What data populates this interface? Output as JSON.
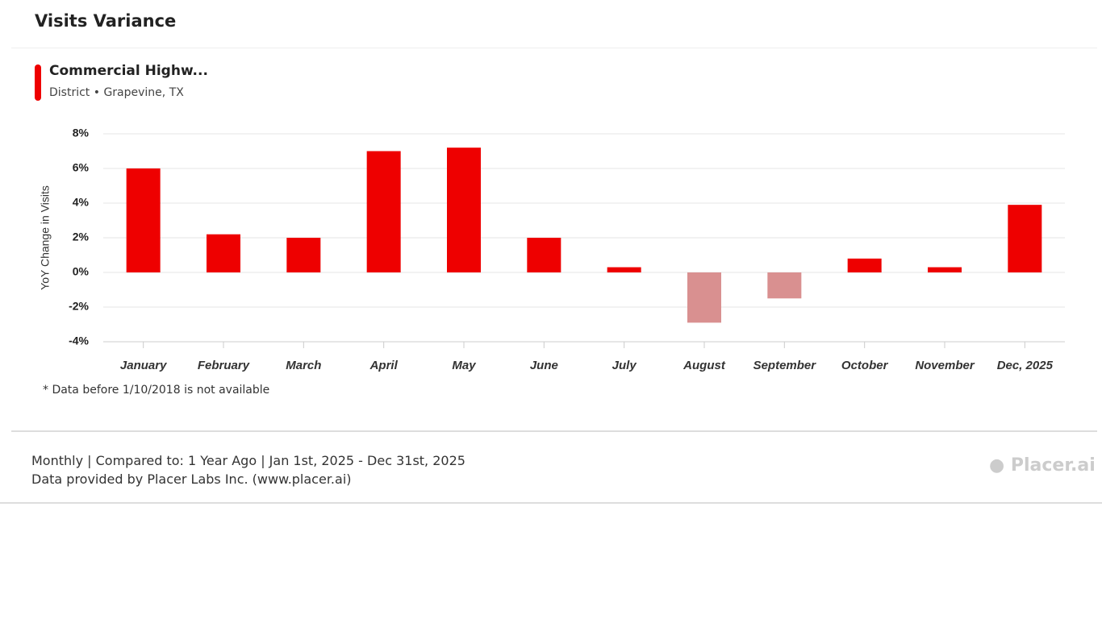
{
  "chart_data": {
    "type": "bar",
    "title": "Visits Variance",
    "entity": {
      "name": "Commercial Highw...",
      "detail": "District • Grapevine, TX"
    },
    "y_label": "YoY Change in Visits",
    "categories": [
      "January",
      "February",
      "March",
      "April",
      "May",
      "June",
      "July",
      "August",
      "September",
      "October",
      "November",
      "Dec, 2025"
    ],
    "values": [
      6.0,
      2.2,
      2.0,
      7.0,
      7.2,
      2.0,
      0.3,
      -2.9,
      -1.5,
      0.8,
      0.3,
      3.9
    ],
    "positive_color": "#ee0000",
    "negative_color": "#d99090",
    "ylim": [
      -4,
      8
    ],
    "yticks": [
      {
        "value": -4,
        "label": "-4%"
      },
      {
        "value": -2,
        "label": "-2%"
      },
      {
        "value": 0,
        "label": "0%"
      },
      {
        "value": 2,
        "label": "2%"
      },
      {
        "value": 4,
        "label": "4%"
      },
      {
        "value": 6,
        "label": "6%"
      },
      {
        "value": 8,
        "label": "8%"
      }
    ],
    "grid": true,
    "footnote": "* Data before 1/10/2018 is not available"
  },
  "footer": {
    "line1": "Monthly | Compared to: 1 Year Ago | Jan 1st, 2025 - Dec 31st, 2025",
    "line2": "Data provided by Placer Labs Inc. (www.placer.ai)",
    "logo": "Placer.ai"
  }
}
